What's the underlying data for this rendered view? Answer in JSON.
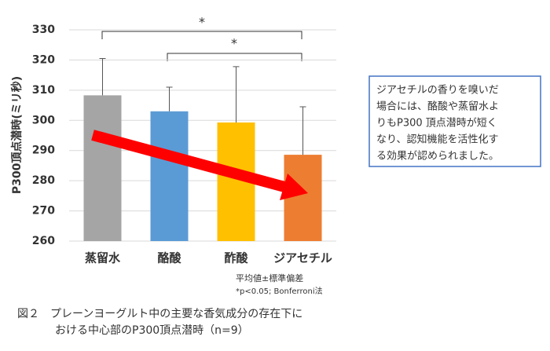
{
  "chart_data": {
    "type": "bar",
    "y_label": "P300頂点潜時(ミリ秒)",
    "categories": [
      "蒸留水",
      "酪酸",
      "酢酸",
      "ジアセチル"
    ],
    "values": [
      308.3,
      303,
      299.3,
      288.6
    ],
    "errors": [
      12.2,
      8,
      18.5,
      15.9
    ],
    "colors": [
      "#a5a5a5",
      "#5b9bd5",
      "#ffc000",
      "#ed7d31"
    ],
    "ylim": [
      260,
      330
    ],
    "yticks": [
      260,
      270,
      280,
      290,
      300,
      310,
      320,
      330
    ],
    "grid": true,
    "significance": [
      "*",
      "*"
    ],
    "notes": [
      "平均値±標準偏差",
      "*p<0.05; Bonferroni法"
    ]
  },
  "callout": [
    "ジアセチルの香りを嗅いだ",
    "場合には、酪酸や蒸留水よ",
    "りもP300 頂点潜時が短く",
    "なり、認知機能を活性化す",
    "る効果が認められました。"
  ],
  "caption": [
    "図２　プレーンヨーグルト中の主要な香気成分の存在下に",
    "おける中心部のP300頂点潜時（n=9）"
  ]
}
